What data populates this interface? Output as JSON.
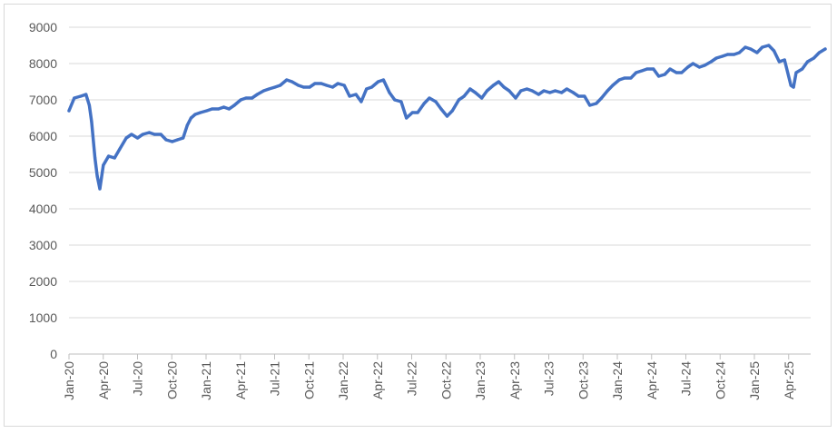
{
  "chart_data": {
    "type": "line",
    "title": "",
    "xlabel": "",
    "ylabel": "",
    "ylim": [
      0,
      9000
    ],
    "y_ticks": [
      0,
      1000,
      2000,
      3000,
      4000,
      5000,
      6000,
      7000,
      8000,
      9000
    ],
    "x_tick_labels": [
      "Jan-20",
      "Apr-20",
      "Jul-20",
      "Oct-20",
      "Jan-21",
      "Apr-21",
      "Jul-21",
      "Oct-21",
      "Jan-22",
      "Apr-22",
      "Jul-22",
      "Oct-22",
      "Jan-23",
      "Apr-23",
      "Jul-23",
      "Oct-23",
      "Jan-24",
      "Apr-24",
      "Jul-24",
      "Oct-24",
      "Jan-25",
      "Apr-25"
    ],
    "grid": "horizontal",
    "legend": "none",
    "line_color": "#4472c4",
    "grid_color": "#d9d9d9",
    "axis_color": "#bfbfbf",
    "series": [
      {
        "x": [
          "2020-01-01",
          "2020-01-15",
          "2020-02-01",
          "2020-02-15",
          "2020-02-24",
          "2020-03-01",
          "2020-03-10",
          "2020-03-16",
          "2020-03-23",
          "2020-04-01",
          "2020-04-15",
          "2020-05-01",
          "2020-05-15",
          "2020-06-01",
          "2020-06-15",
          "2020-07-01",
          "2020-07-15",
          "2020-08-01",
          "2020-08-15",
          "2020-09-01",
          "2020-09-15",
          "2020-10-01",
          "2020-10-15",
          "2020-10-30",
          "2020-11-10",
          "2020-11-20",
          "2020-12-01",
          "2020-12-15",
          "2021-01-01",
          "2021-01-15",
          "2021-02-01",
          "2021-02-15",
          "2021-03-01",
          "2021-03-15",
          "2021-04-01",
          "2021-04-15",
          "2021-05-01",
          "2021-05-15",
          "2021-06-01",
          "2021-06-15",
          "2021-07-01",
          "2021-07-15",
          "2021-08-01",
          "2021-08-15",
          "2021-09-01",
          "2021-09-15",
          "2021-10-01",
          "2021-10-15",
          "2021-11-01",
          "2021-11-15",
          "2021-12-01",
          "2021-12-15",
          "2022-01-01",
          "2022-01-15",
          "2022-02-01",
          "2022-02-15",
          "2022-03-01",
          "2022-03-15",
          "2022-04-01",
          "2022-04-15",
          "2022-05-01",
          "2022-05-15",
          "2022-06-01",
          "2022-06-15",
          "2022-07-01",
          "2022-07-15",
          "2022-08-01",
          "2022-08-15",
          "2022-09-01",
          "2022-09-15",
          "2022-10-01",
          "2022-10-15",
          "2022-11-01",
          "2022-11-15",
          "2022-12-01",
          "2022-12-15",
          "2023-01-01",
          "2023-01-15",
          "2023-02-01",
          "2023-02-15",
          "2023-03-01",
          "2023-03-15",
          "2023-04-01",
          "2023-04-15",
          "2023-05-01",
          "2023-05-15",
          "2023-06-01",
          "2023-06-15",
          "2023-07-01",
          "2023-07-15",
          "2023-08-01",
          "2023-08-15",
          "2023-09-01",
          "2023-09-15",
          "2023-10-01",
          "2023-10-15",
          "2023-11-01",
          "2023-11-15",
          "2023-12-01",
          "2023-12-15",
          "2024-01-01",
          "2024-01-15",
          "2024-02-01",
          "2024-02-15",
          "2024-03-01",
          "2024-03-15",
          "2024-04-01",
          "2024-04-15",
          "2024-05-01",
          "2024-05-15",
          "2024-06-01",
          "2024-06-15",
          "2024-07-01",
          "2024-07-15",
          "2024-08-01",
          "2024-08-15",
          "2024-09-01",
          "2024-09-15",
          "2024-10-01",
          "2024-10-15",
          "2024-11-01",
          "2024-11-15",
          "2024-12-01",
          "2024-12-15",
          "2025-01-01",
          "2025-01-15",
          "2025-02-01",
          "2025-02-15",
          "2025-03-01",
          "2025-03-15",
          "2025-04-01",
          "2025-04-08",
          "2025-04-15",
          "2025-05-01",
          "2025-05-15",
          "2025-06-01",
          "2025-06-15",
          "2025-07-01"
        ],
        "values": [
          6700,
          7050,
          7100,
          7150,
          6850,
          6400,
          5400,
          4900,
          4550,
          5200,
          5450,
          5400,
          5650,
          5950,
          6050,
          5950,
          6050,
          6100,
          6050,
          6050,
          5900,
          5850,
          5900,
          5950,
          6300,
          6500,
          6600,
          6650,
          6700,
          6750,
          6750,
          6800,
          6750,
          6850,
          7000,
          7050,
          7050,
          7150,
          7250,
          7300,
          7350,
          7400,
          7550,
          7500,
          7400,
          7350,
          7350,
          7450,
          7450,
          7400,
          7350,
          7450,
          7400,
          7100,
          7150,
          6950,
          7300,
          7350,
          7500,
          7550,
          7200,
          7000,
          6950,
          6500,
          6650,
          6650,
          6900,
          7050,
          6950,
          6750,
          6550,
          6700,
          7000,
          7100,
          7300,
          7200,
          7050,
          7250,
          7400,
          7500,
          7350,
          7250,
          7050,
          7250,
          7300,
          7250,
          7150,
          7250,
          7200,
          7250,
          7200,
          7300,
          7200,
          7100,
          7100,
          6850,
          6900,
          7050,
          7250,
          7400,
          7550,
          7600,
          7600,
          7750,
          7800,
          7850,
          7850,
          7650,
          7700,
          7850,
          7750,
          7750,
          7900,
          8000,
          7900,
          7950,
          8050,
          8150,
          8200,
          8250,
          8250,
          8300,
          8450,
          8400,
          8300,
          8450,
          8500,
          8350,
          8050,
          8100,
          7400,
          7350,
          7750,
          7850,
          8050,
          8150,
          8300,
          8400
        ]
      }
    ]
  }
}
